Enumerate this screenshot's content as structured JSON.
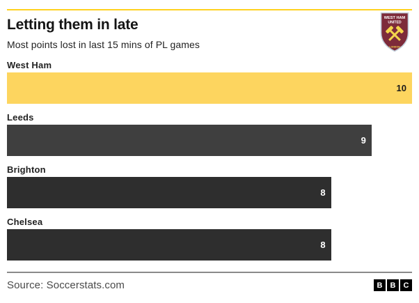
{
  "header": {
    "title": "Letting them in late",
    "subtitle": "Most points lost in last 15 mins of PL games",
    "badge": {
      "club": "West Ham United crest",
      "line1": "WEST HAM",
      "line2": "UNITED",
      "city": "LONDON"
    }
  },
  "chart_data": {
    "type": "bar",
    "orientation": "horizontal",
    "title": "Letting them in late",
    "subtitle": "Most points lost in last 15 mins of PL games",
    "categories": [
      "West Ham",
      "Leeds",
      "Brighton",
      "Chelsea"
    ],
    "values": [
      10,
      9,
      8,
      8
    ],
    "xlim": [
      0,
      10
    ],
    "grid": false,
    "legend": "none",
    "bar_colors": [
      "#FDD55F",
      "#3F3F3F",
      "#2E2E2E",
      "#2E2E2E"
    ],
    "value_label_colors": [
      "#1a1a1a",
      "#ffffff",
      "#ffffff",
      "#ffffff"
    ],
    "source": "Source: Soccerstats.com"
  },
  "footer": {
    "source": "Source: Soccerstats.com",
    "logo_letters": [
      "B",
      "B",
      "C"
    ]
  },
  "colors": {
    "accent_rule": "#FFD21E",
    "highlight_bar": "#FDD55F",
    "dark_bar": "#2E2E2E",
    "claret": "#7D2B3A",
    "hammer_yellow": "#F3D54C",
    "divider": "#8a8a8a",
    "background": "#ffffff"
  }
}
